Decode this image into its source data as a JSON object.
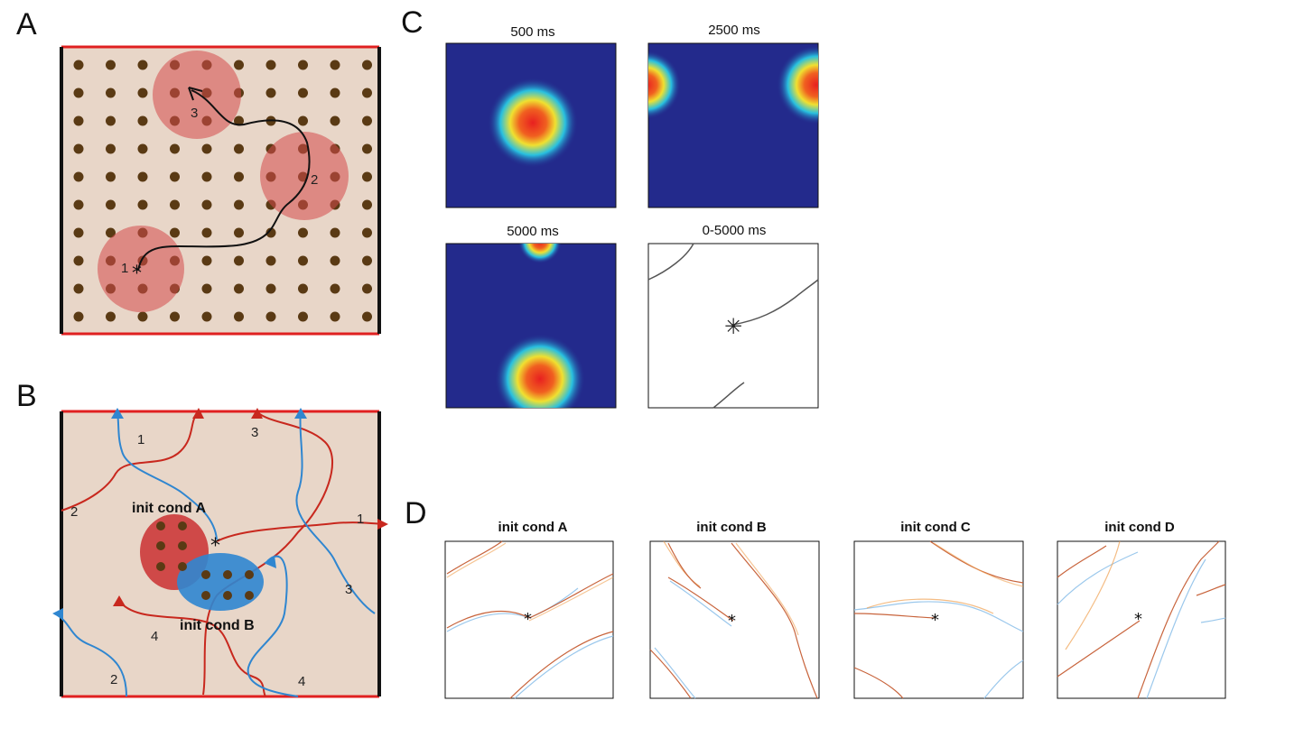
{
  "panels": {
    "a": {
      "label": "A",
      "field_labels": [
        "1",
        "2",
        "3"
      ],
      "colors": {
        "arena": "#e8d6c8",
        "dot": "#5a3a14",
        "field": "#d44a4a",
        "trajectory": "#111111",
        "wall_red": "#e02020",
        "wall_black": "#111111"
      }
    },
    "b": {
      "label": "B",
      "cond_a_label": "init cond A",
      "cond_b_label": "init cond B",
      "blue_path_labels": [
        "1",
        "2",
        "3",
        "4"
      ],
      "red_path_labels": [
        "1",
        "2",
        "3",
        "4"
      ],
      "colors": {
        "red_path": "#c8281e",
        "blue_path": "#2f86d0",
        "cond_a": "#cc3a3a",
        "cond_b": "#2f86d0"
      }
    },
    "c": {
      "label": "C",
      "titles": [
        "500 ms",
        "2500 ms",
        "5000 ms",
        "0-5000 ms"
      ],
      "colors": {
        "background": "#232a8c",
        "cool": "#28c0e0",
        "mid": "#f0e030",
        "hot": "#e82020"
      }
    },
    "d": {
      "label": "D",
      "titles": [
        "init cond A",
        "init cond B",
        "init cond C",
        "init cond D"
      ]
    }
  }
}
